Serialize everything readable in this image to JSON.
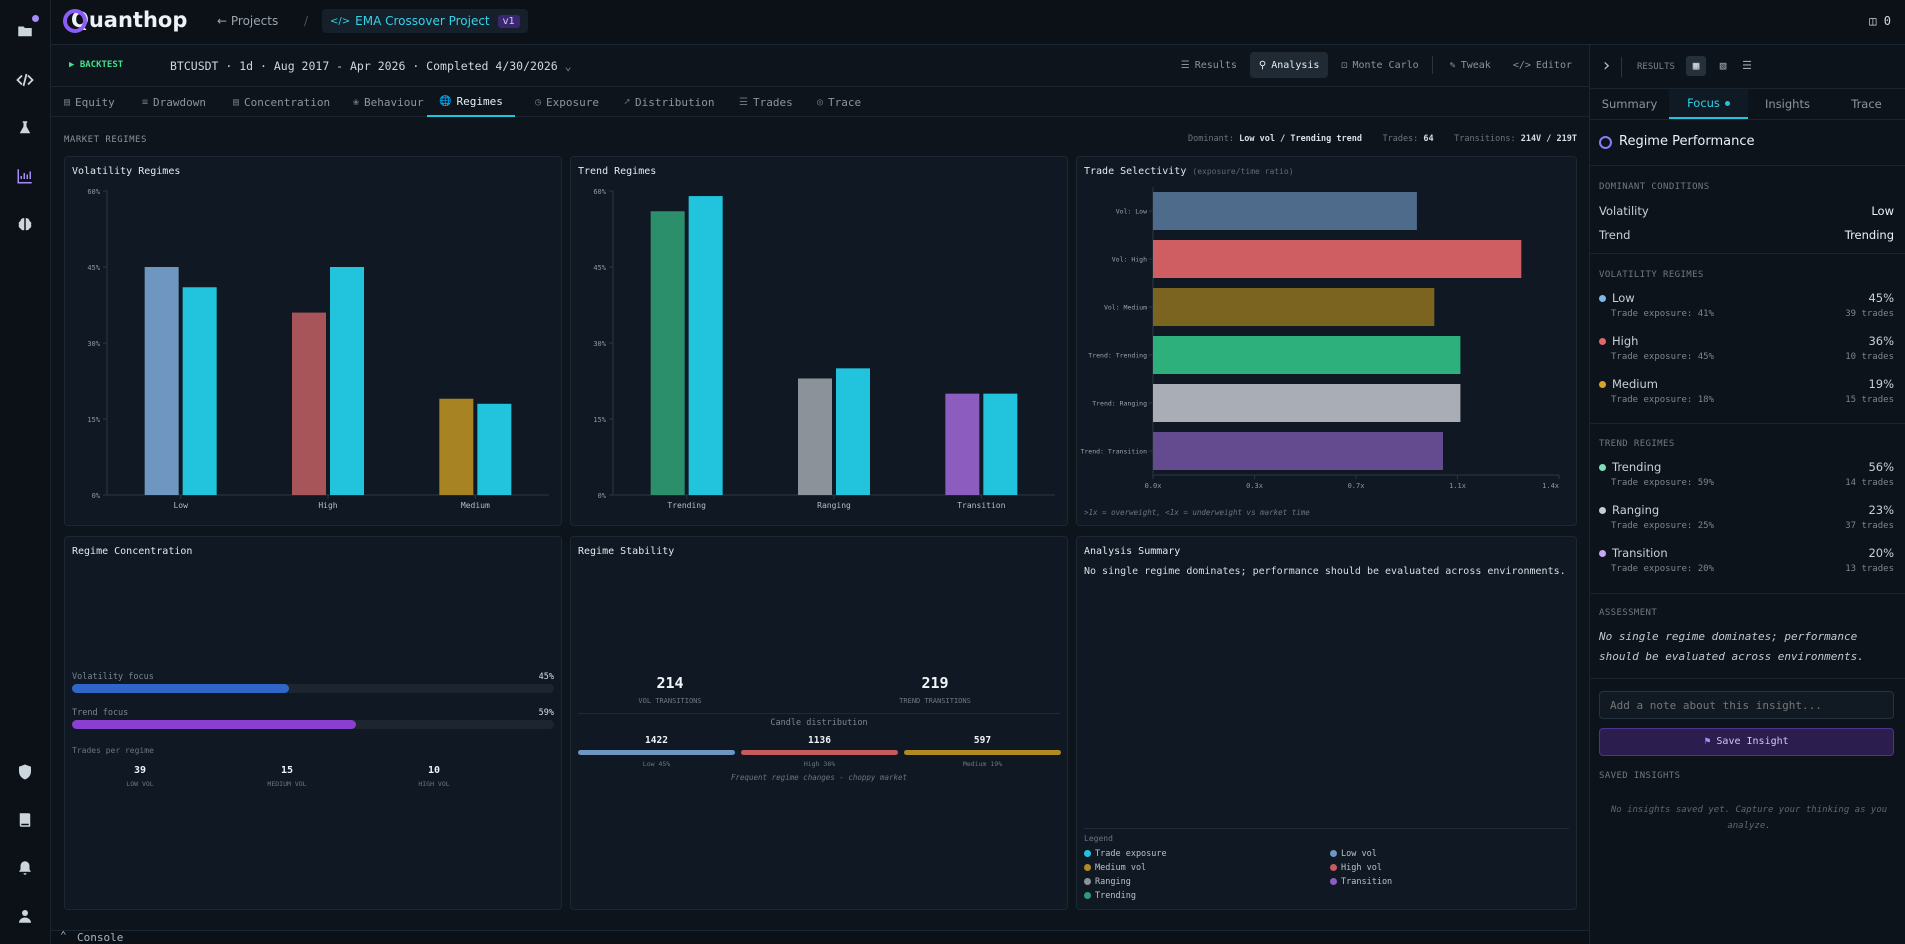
{
  "app": {
    "name": "Quanthop",
    "credits": "0"
  },
  "breadcrumb": {
    "projects": "Projects",
    "separator": "/",
    "project": "EMA Crossover Project",
    "version": "v1"
  },
  "toolbar": {
    "mode": "BACKTEST",
    "run_info": "BTCUSDT · 1d · Aug 2017 - Apr 2026 · Completed 4/30/2026",
    "buttons": [
      "Results",
      "Analysis",
      "Monte Carlo",
      "Tweak",
      "Editor"
    ],
    "active_button": "Analysis"
  },
  "tabs": [
    "Equity",
    "Drawdown",
    "Concentration",
    "Behaviour",
    "Regimes",
    "Exposure",
    "Distribution",
    "Trades",
    "Trace"
  ],
  "active_tab": "Regimes",
  "section": {
    "title": "MARKET REGIMES",
    "dominant_label": "Dominant:",
    "dominant_value": "Low vol / Trending trend",
    "trades_label": "Trades:",
    "trades_value": "64",
    "transitions_label": "Transitions:",
    "transitions_value": "214V / 219T"
  },
  "volatility_panel": {
    "title": "Volatility Regimes"
  },
  "trend_panel": {
    "title": "Trend Regimes"
  },
  "selectivity_panel": {
    "title": "Trade Selectivity",
    "subtitle": "(exposure/time ratio)",
    "footnote": ">1x = overweight, <1x = underweight vs market time"
  },
  "concentration_panel": {
    "title": "Regime Concentration",
    "vol_focus_label": "Volatility focus",
    "vol_focus_value": "45%",
    "vol_focus_fraction": 0.45,
    "trend_focus_label": "Trend focus",
    "trend_focus_value": "59%",
    "trend_focus_fraction": 0.59,
    "trades_per_regime_label": "Trades per regime",
    "trades": [
      {
        "count": "39",
        "label": "LOW VOL"
      },
      {
        "count": "15",
        "label": "MEDIUM VOL"
      },
      {
        "count": "10",
        "label": "HIGH VOL"
      }
    ]
  },
  "stability_panel": {
    "title": "Regime Stability",
    "vol_transitions": "214",
    "vol_transitions_label": "VOL TRANSITIONS",
    "trend_transitions": "219",
    "trend_transitions_label": "TREND TRANSITIONS",
    "candle_label": "Candle distribution",
    "candles": [
      {
        "count": "1422",
        "label": "Low 45%",
        "color": "#6f95c1"
      },
      {
        "count": "1136",
        "label": "High 36%",
        "color": "#c65b5e"
      },
      {
        "count": "597",
        "label": "Medium 19%",
        "color": "#b28a22"
      }
    ],
    "note": "Frequent regime changes - choppy market"
  },
  "summary_panel": {
    "title": "Analysis Summary",
    "text": "No single regime dominates; performance should be evaluated across environments.",
    "legend_title": "Legend",
    "legend": [
      {
        "label": "Trade exposure",
        "color": "#22c3dd"
      },
      {
        "label": "Low vol",
        "color": "#6f95c1"
      },
      {
        "label": "Medium vol",
        "color": "#b28a22"
      },
      {
        "label": "High vol",
        "color": "#c65b5e"
      },
      {
        "label": "Ranging",
        "color": "#8b9299"
      },
      {
        "label": "Transition",
        "color": "#8c5dbf"
      },
      {
        "label": "Trending",
        "color": "#2f9b76"
      }
    ]
  },
  "chart_data": [
    {
      "type": "bar",
      "title": "Volatility Regimes",
      "categories": [
        "Low",
        "High",
        "Medium"
      ],
      "series": [
        {
          "values": [
            45,
            36,
            19
          ],
          "colors": [
            "#6f95c1",
            "#a8555a",
            "#a88324"
          ]
        },
        {
          "values": [
            41,
            45,
            18
          ],
          "color": "#22c3dd"
        }
      ],
      "yticks": [
        "0%",
        "15%",
        "30%",
        "45%",
        "60%"
      ],
      "ylim": [
        0,
        60
      ]
    },
    {
      "type": "bar",
      "title": "Trend Regimes",
      "categories": [
        "Trending",
        "Ranging",
        "Transition"
      ],
      "series": [
        {
          "values": [
            56,
            23,
            20
          ],
          "colors": [
            "#2a8f6a",
            "#8b9299",
            "#8c5dbf"
          ]
        },
        {
          "values": [
            59,
            25,
            20
          ],
          "color": "#22c3dd"
        }
      ],
      "yticks": [
        "0%",
        "15%",
        "30%",
        "45%",
        "60%"
      ],
      "ylim": [
        0,
        60
      ]
    },
    {
      "type": "bar",
      "orientation": "horizontal",
      "title": "Trade Selectivity",
      "categories": [
        "Vol: Low",
        "Vol: High",
        "Vol: Medium",
        "Trend: Trending",
        "Trend: Ranging",
        "Trend: Transition"
      ],
      "values": [
        0.91,
        1.27,
        0.97,
        1.06,
        1.06,
        1.0
      ],
      "colors": [
        "#4f6b8c",
        "#cf5e63",
        "#7b6420",
        "#2db07c",
        "#a9adb6",
        "#644a8f"
      ],
      "xticks": [
        "0.0x",
        "0.3x",
        "0.7x",
        "1.1x",
        "1.4x"
      ],
      "xlim": [
        0,
        1.4
      ]
    }
  ],
  "sidebar": {
    "results_label": "RESULTS",
    "tabs": [
      "Summary",
      "Focus",
      "Insights",
      "Trace"
    ],
    "active_tab": "Focus",
    "title": "Regime Performance",
    "dominant_title": "DOMINANT CONDITIONS",
    "dominant": [
      {
        "label": "Volatility",
        "value": "Low"
      },
      {
        "label": "Trend",
        "value": "Trending"
      }
    ],
    "vol_title": "VOLATILITY REGIMES",
    "vol": [
      {
        "label": "Low",
        "pct": "45%",
        "exposure": "Trade exposure: 41%",
        "trades": "39 trades",
        "color": "#7fb7e8"
      },
      {
        "label": "High",
        "pct": "36%",
        "exposure": "Trade exposure: 45%",
        "trades": "10 trades",
        "color": "#e0686b"
      },
      {
        "label": "Medium",
        "pct": "19%",
        "exposure": "Trade exposure: 18%",
        "trades": "15 trades",
        "color": "#d4a52a"
      }
    ],
    "trend_title": "TREND REGIMES",
    "trend": [
      {
        "label": "Trending",
        "pct": "56%",
        "exposure": "Trade exposure: 59%",
        "trades": "14 trades",
        "color": "#7fe0c0"
      },
      {
        "label": "Ranging",
        "pct": "23%",
        "exposure": "Trade exposure: 25%",
        "trades": "37 trades",
        "color": "#c7ccd2"
      },
      {
        "label": "Transition",
        "pct": "20%",
        "exposure": "Trade exposure: 20%",
        "trades": "13 trades",
        "color": "#c6a8f0"
      }
    ],
    "assessment_title": "ASSESSMENT",
    "assessment": "No single regime dominates; performance should be evaluated across environments.",
    "note_placeholder": "Add a note about this insight...",
    "save_label": "Save Insight",
    "saved_title": "SAVED INSIGHTS",
    "saved_empty": "No insights saved yet. Capture your thinking as you analyze."
  },
  "console": {
    "label": "Console"
  }
}
